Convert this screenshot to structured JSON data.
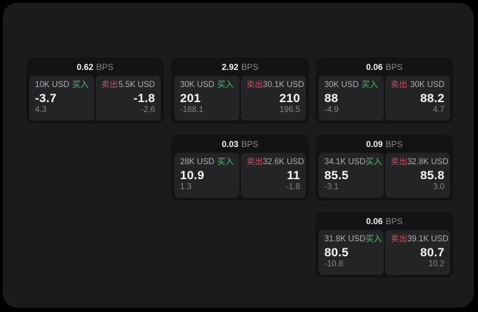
{
  "labels": {
    "bps_unit": "BPS",
    "buy": "买入",
    "sell": "卖出"
  },
  "colors": {
    "page_bg": "#000000",
    "panel_bg": "#1b1b1d",
    "card_bg": "#131315",
    "tile_bg": "#242427",
    "buy_green": "#3ec56c",
    "sell_red": "#d04f63"
  },
  "cards": [
    {
      "bps": "0.62",
      "buy": {
        "amount": "10K USD",
        "value": "-3.7",
        "delta": "4.3"
      },
      "sell": {
        "amount": "5.5K USD",
        "value": "-1.8",
        "delta": "-2.6"
      }
    },
    {
      "bps": "2.92",
      "buy": {
        "amount": "30K USD",
        "value": "201",
        "delta": "-188.1"
      },
      "sell": {
        "amount": "30.1K USD",
        "value": "210",
        "delta": "196.5"
      }
    },
    {
      "bps": "0.06",
      "buy": {
        "amount": "30K USD",
        "value": "88",
        "delta": "-4.9"
      },
      "sell": {
        "amount": "30K USD",
        "value": "88.2",
        "delta": "4.7"
      }
    },
    {
      "bps": "0.03",
      "buy": {
        "amount": "28K USD",
        "value": "10.9",
        "delta": "1.3"
      },
      "sell": {
        "amount": "32.6K USD",
        "value": "11",
        "delta": "-1.8"
      }
    },
    {
      "bps": "0.09",
      "buy": {
        "amount": "34.1K USD",
        "value": "85.5",
        "delta": "-3.1"
      },
      "sell": {
        "amount": "32.8K USD",
        "value": "85.8",
        "delta": "3.0"
      }
    },
    {
      "bps": "0.06",
      "buy": {
        "amount": "31.8K USD",
        "value": "80.5",
        "delta": "-10.8"
      },
      "sell": {
        "amount": "39.1K USD",
        "value": "80.7",
        "delta": "10.2"
      }
    }
  ]
}
